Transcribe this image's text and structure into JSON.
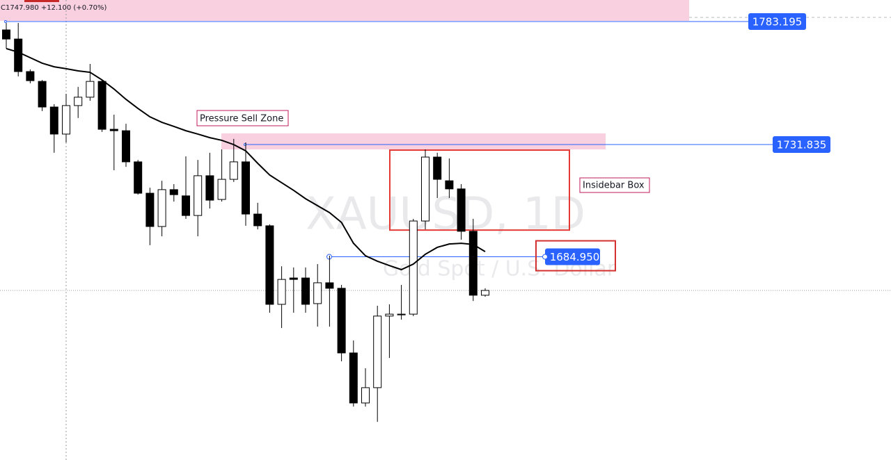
{
  "chart_data": {
    "type": "candlestick",
    "header": "C1747.980 +12.100 (+0.70%)",
    "watermark": "XAUUSD, 1D",
    "watermark_subtitle": "Gold Spot / U.S. Dollar",
    "ylim": [
      1600.09,
      1792.19
    ],
    "up_color": "#ffffff",
    "down_color": "#000000",
    "candles": {
      "open": [
        1779.7,
        1775.9,
        1762.3,
        1758.2,
        1747.5,
        1736.2,
        1748.1,
        1751.6,
        1758.2,
        1738.2,
        1737.6,
        1724.6,
        1711.5,
        1697.6,
        1713.0,
        1710.4,
        1702.2,
        1718.8,
        1708.9,
        1717.3,
        1724.6,
        1702.8,
        1697.9,
        1665.1,
        1676.1,
        1676.1,
        1665.4,
        1674.1,
        1671.8,
        1644.8,
        1623.9,
        1630.3,
        1660.2,
        1660.7,
        1661.0,
        1699.9,
        1726.6,
        1716.7,
        1713.3,
        1695.6,
        1668.9
      ],
      "high": [
        1782.6,
        1782.6,
        1763.2,
        1758.8,
        1748.7,
        1753.0,
        1755.9,
        1765.5,
        1758.8,
        1744.3,
        1740.5,
        1725.4,
        1713.8,
        1716.7,
        1715.3,
        1726.9,
        1725.4,
        1728.4,
        1729.8,
        1734.2,
        1732.7,
        1707.5,
        1698.5,
        1681.0,
        1680.5,
        1680.5,
        1681.9,
        1685.4,
        1673.2,
        1650.0,
        1638.4,
        1664.5,
        1665.1,
        1673.2,
        1700.8,
        1729.8,
        1728.4,
        1726.0,
        1715.3,
        1700.8,
        1671.8
      ],
      "low": [
        1771.9,
        1760.3,
        1757.4,
        1745.8,
        1728.4,
        1732.7,
        1742.9,
        1750.1,
        1737.1,
        1721.1,
        1722.5,
        1710.9,
        1689.8,
        1693.5,
        1708.0,
        1700.8,
        1693.5,
        1705.1,
        1708.0,
        1716.2,
        1697.9,
        1696.4,
        1661.6,
        1655.2,
        1661.6,
        1661.6,
        1655.8,
        1655.8,
        1641.3,
        1622.4,
        1622.4,
        1616.0,
        1642.7,
        1658.7,
        1660.2,
        1696.4,
        1709.5,
        1709.5,
        1692.1,
        1666.5,
        1668.3
      ],
      "close": [
        1775.9,
        1762.3,
        1758.5,
        1747.5,
        1736.2,
        1748.1,
        1751.6,
        1758.2,
        1738.2,
        1737.6,
        1724.6,
        1711.5,
        1697.6,
        1713.0,
        1710.9,
        1702.2,
        1718.8,
        1708.6,
        1717.3,
        1724.6,
        1702.8,
        1697.9,
        1665.1,
        1675.5,
        1675.5,
        1665.1,
        1674.1,
        1671.8,
        1644.8,
        1623.9,
        1630.3,
        1660.2,
        1661.0,
        1661.0,
        1699.9,
        1726.6,
        1717.3,
        1713.3,
        1695.6,
        1668.9,
        1670.9
      ]
    },
    "moving_average": {
      "color": "#000000",
      "values": [
        1771.9,
        1770.4,
        1768.1,
        1765.8,
        1764.3,
        1763.5,
        1762.6,
        1762.0,
        1758.8,
        1755.0,
        1750.7,
        1746.9,
        1743.4,
        1741.1,
        1739.4,
        1737.6,
        1736.2,
        1734.7,
        1733.6,
        1731.8,
        1729.2,
        1724.0,
        1719.1,
        1715.9,
        1712.7,
        1709.2,
        1706.3,
        1703.4,
        1699.3,
        1690.6,
        1685.4,
        1683.1,
        1681.3,
        1679.6,
        1681.9,
        1686.0,
        1688.9,
        1690.3,
        1690.6,
        1690.1,
        1687.1
      ]
    },
    "levels": [
      1783.195,
      1731.835,
      {
        "value": 1684.95,
        "label": "1684.950"
      }
    ],
    "level_color": "#2962ff",
    "zones": [
      {
        "range": [
          1783.5,
          1792.19
        ],
        "color": "#f8d0df"
      },
      {
        "label": "Pressure Sell Zone",
        "range": [
          1729.8,
          1736.5
        ],
        "color": "#f8d0df"
      }
    ],
    "box": {
      "label": "Insidebar Box",
      "range": [
        1696.1,
        1729.5
      ],
      "color": "#e53935"
    }
  }
}
